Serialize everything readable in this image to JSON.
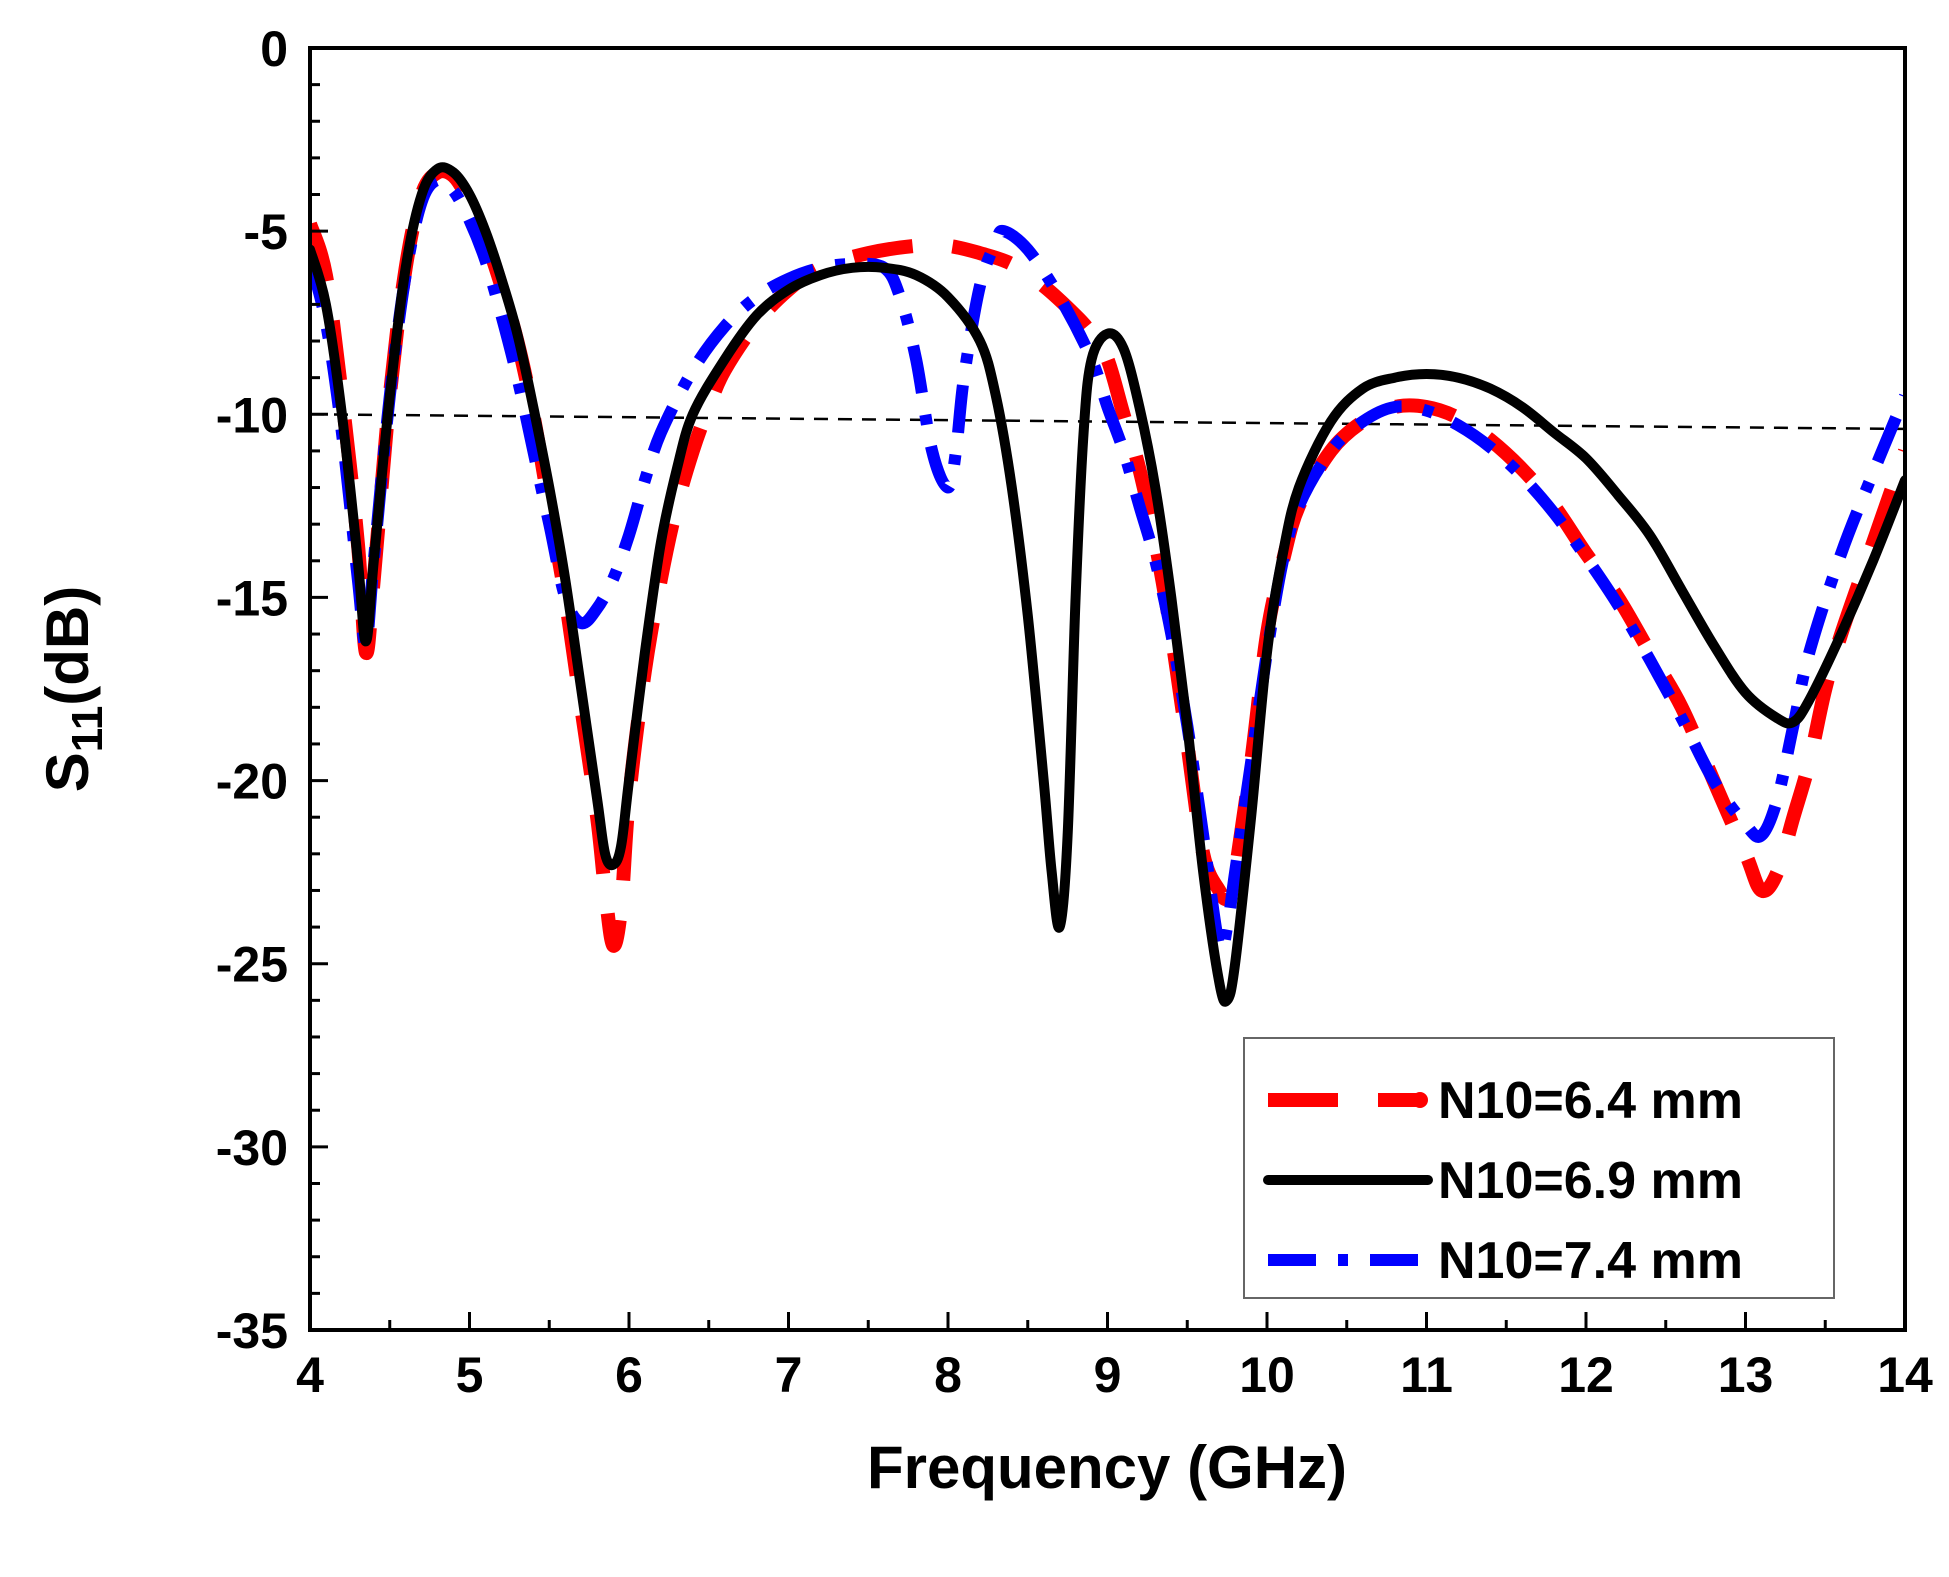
{
  "chart_data": {
    "type": "line",
    "title": "",
    "xlabel": "Frequency (GHz)",
    "ylabel_main": "S",
    "ylabel_sub": "11",
    "ylabel_unit": "(dB)",
    "xlim": [
      4,
      14
    ],
    "ylim": [
      -35,
      0
    ],
    "xticks": [
      4,
      5,
      6,
      7,
      8,
      9,
      10,
      11,
      12,
      13,
      14
    ],
    "yticks": [
      0,
      -5,
      -10,
      -15,
      -20,
      -25,
      -30,
      -35
    ],
    "grid": false,
    "legend_position": "bottom-right",
    "reference_line": {
      "style": "dashed",
      "color": "#000000",
      "points": [
        [
          4,
          -10.0
        ],
        [
          14,
          -10.4
        ]
      ]
    },
    "series": [
      {
        "name": "N10=6.4 mm",
        "color": "#ff0000",
        "style": "dash",
        "points": [
          [
            4.0,
            -4.8
          ],
          [
            4.1,
            -6.2
          ],
          [
            4.2,
            -9.5
          ],
          [
            4.3,
            -13.5
          ],
          [
            4.35,
            -16.5
          ],
          [
            4.4,
            -14.5
          ],
          [
            4.5,
            -9.5
          ],
          [
            4.6,
            -6.0
          ],
          [
            4.7,
            -4.0
          ],
          [
            4.8,
            -3.4
          ],
          [
            4.9,
            -3.5
          ],
          [
            5.0,
            -4.2
          ],
          [
            5.1,
            -5.2
          ],
          [
            5.2,
            -6.5
          ],
          [
            5.3,
            -8.0
          ],
          [
            5.4,
            -10.0
          ],
          [
            5.5,
            -12.5
          ],
          [
            5.6,
            -15.0
          ],
          [
            5.7,
            -18.0
          ],
          [
            5.8,
            -21.0
          ],
          [
            5.85,
            -23.0
          ],
          [
            5.9,
            -24.5
          ],
          [
            5.95,
            -23.5
          ],
          [
            6.0,
            -20.5
          ],
          [
            6.1,
            -17.0
          ],
          [
            6.2,
            -14.5
          ],
          [
            6.3,
            -12.5
          ],
          [
            6.4,
            -11.0
          ],
          [
            6.5,
            -9.8
          ],
          [
            6.6,
            -8.8
          ],
          [
            6.8,
            -7.5
          ],
          [
            7.0,
            -6.6
          ],
          [
            7.2,
            -6.0
          ],
          [
            7.5,
            -5.6
          ],
          [
            7.8,
            -5.4
          ],
          [
            8.0,
            -5.4
          ],
          [
            8.2,
            -5.6
          ],
          [
            8.4,
            -5.9
          ],
          [
            8.6,
            -6.5
          ],
          [
            8.8,
            -7.3
          ],
          [
            8.9,
            -7.8
          ],
          [
            9.0,
            -8.5
          ],
          [
            9.1,
            -10.0
          ],
          [
            9.2,
            -11.5
          ],
          [
            9.3,
            -13.5
          ],
          [
            9.4,
            -16.0
          ],
          [
            9.5,
            -19.0
          ],
          [
            9.6,
            -22.0
          ],
          [
            9.7,
            -23.0
          ],
          [
            9.75,
            -23.2
          ],
          [
            9.8,
            -22.5
          ],
          [
            9.9,
            -19.5
          ],
          [
            10.0,
            -16.0
          ],
          [
            10.1,
            -14.0
          ],
          [
            10.2,
            -12.5
          ],
          [
            10.4,
            -11.0
          ],
          [
            10.6,
            -10.2
          ],
          [
            10.8,
            -9.8
          ],
          [
            11.0,
            -9.8
          ],
          [
            11.2,
            -10.1
          ],
          [
            11.4,
            -10.7
          ],
          [
            11.6,
            -11.5
          ],
          [
            11.8,
            -12.5
          ],
          [
            12.0,
            -13.8
          ],
          [
            12.2,
            -15.0
          ],
          [
            12.4,
            -16.5
          ],
          [
            12.6,
            -18.0
          ],
          [
            12.8,
            -20.0
          ],
          [
            13.0,
            -22.0
          ],
          [
            13.1,
            -23.0
          ],
          [
            13.2,
            -22.5
          ],
          [
            13.3,
            -21.0
          ],
          [
            13.4,
            -19.5
          ],
          [
            13.5,
            -17.5
          ],
          [
            13.6,
            -16.0
          ],
          [
            13.8,
            -13.5
          ],
          [
            14.0,
            -11.0
          ]
        ]
      },
      {
        "name": "N10=6.9 mm",
        "color": "#000000",
        "style": "solid",
        "points": [
          [
            4.0,
            -5.5
          ],
          [
            4.1,
            -7.0
          ],
          [
            4.2,
            -10.0
          ],
          [
            4.3,
            -14.0
          ],
          [
            4.35,
            -16.2
          ],
          [
            4.4,
            -14.0
          ],
          [
            4.5,
            -9.5
          ],
          [
            4.6,
            -6.0
          ],
          [
            4.7,
            -4.0
          ],
          [
            4.8,
            -3.3
          ],
          [
            4.9,
            -3.4
          ],
          [
            5.0,
            -4.0
          ],
          [
            5.1,
            -5.0
          ],
          [
            5.2,
            -6.3
          ],
          [
            5.3,
            -7.8
          ],
          [
            5.4,
            -9.8
          ],
          [
            5.5,
            -12.0
          ],
          [
            5.6,
            -14.5
          ],
          [
            5.7,
            -17.5
          ],
          [
            5.8,
            -20.5
          ],
          [
            5.85,
            -22.0
          ],
          [
            5.9,
            -22.3
          ],
          [
            5.95,
            -21.8
          ],
          [
            6.0,
            -20.0
          ],
          [
            6.1,
            -16.5
          ],
          [
            6.2,
            -13.5
          ],
          [
            6.3,
            -11.5
          ],
          [
            6.4,
            -10.0
          ],
          [
            6.6,
            -8.5
          ],
          [
            6.8,
            -7.3
          ],
          [
            7.0,
            -6.6
          ],
          [
            7.2,
            -6.2
          ],
          [
            7.4,
            -6.0
          ],
          [
            7.6,
            -6.0
          ],
          [
            7.8,
            -6.2
          ],
          [
            8.0,
            -6.8
          ],
          [
            8.2,
            -8.0
          ],
          [
            8.3,
            -9.5
          ],
          [
            8.4,
            -12.0
          ],
          [
            8.5,
            -15.5
          ],
          [
            8.6,
            -20.0
          ],
          [
            8.65,
            -22.5
          ],
          [
            8.7,
            -24.0
          ],
          [
            8.75,
            -21.5
          ],
          [
            8.8,
            -15.0
          ],
          [
            8.85,
            -10.5
          ],
          [
            8.9,
            -8.5
          ],
          [
            9.0,
            -7.8
          ],
          [
            9.1,
            -8.2
          ],
          [
            9.2,
            -9.8
          ],
          [
            9.3,
            -12.0
          ],
          [
            9.4,
            -15.0
          ],
          [
            9.5,
            -18.5
          ],
          [
            9.6,
            -22.5
          ],
          [
            9.7,
            -25.5
          ],
          [
            9.75,
            -26.0
          ],
          [
            9.8,
            -25.0
          ],
          [
            9.9,
            -21.0
          ],
          [
            10.0,
            -16.5
          ],
          [
            10.1,
            -13.8
          ],
          [
            10.2,
            -12.0
          ],
          [
            10.4,
            -10.2
          ],
          [
            10.6,
            -9.3
          ],
          [
            10.8,
            -9.0
          ],
          [
            11.0,
            -8.9
          ],
          [
            11.2,
            -9.0
          ],
          [
            11.4,
            -9.3
          ],
          [
            11.6,
            -9.8
          ],
          [
            11.8,
            -10.5
          ],
          [
            12.0,
            -11.2
          ],
          [
            12.2,
            -12.2
          ],
          [
            12.4,
            -13.3
          ],
          [
            12.6,
            -14.8
          ],
          [
            12.8,
            -16.3
          ],
          [
            13.0,
            -17.6
          ],
          [
            13.2,
            -18.3
          ],
          [
            13.3,
            -18.4
          ],
          [
            13.4,
            -17.8
          ],
          [
            13.6,
            -16.0
          ],
          [
            13.8,
            -14.0
          ],
          [
            14.0,
            -11.8
          ]
        ]
      },
      {
        "name": "N10=7.4 mm",
        "color": "#0000ff",
        "style": "dashdot",
        "points": [
          [
            4.0,
            -5.8
          ],
          [
            4.1,
            -7.5
          ],
          [
            4.2,
            -10.5
          ],
          [
            4.3,
            -14.5
          ],
          [
            4.35,
            -16.3
          ],
          [
            4.4,
            -14.0
          ],
          [
            4.5,
            -9.5
          ],
          [
            4.6,
            -6.2
          ],
          [
            4.7,
            -4.2
          ],
          [
            4.8,
            -3.6
          ],
          [
            4.9,
            -3.9
          ],
          [
            5.0,
            -4.7
          ],
          [
            5.1,
            -5.8
          ],
          [
            5.2,
            -7.3
          ],
          [
            5.3,
            -9.0
          ],
          [
            5.4,
            -11.0
          ],
          [
            5.5,
            -13.0
          ],
          [
            5.6,
            -15.0
          ],
          [
            5.7,
            -15.7
          ],
          [
            5.8,
            -15.3
          ],
          [
            5.9,
            -14.5
          ],
          [
            6.0,
            -13.3
          ],
          [
            6.1,
            -11.8
          ],
          [
            6.2,
            -10.5
          ],
          [
            6.4,
            -8.8
          ],
          [
            6.6,
            -7.6
          ],
          [
            6.8,
            -6.8
          ],
          [
            7.0,
            -6.3
          ],
          [
            7.2,
            -6.0
          ],
          [
            7.4,
            -5.9
          ],
          [
            7.6,
            -6.0
          ],
          [
            7.7,
            -6.8
          ],
          [
            7.8,
            -8.5
          ],
          [
            7.9,
            -11.0
          ],
          [
            8.0,
            -12.0
          ],
          [
            8.05,
            -11.0
          ],
          [
            8.1,
            -9.0
          ],
          [
            8.2,
            -6.5
          ],
          [
            8.3,
            -5.3
          ],
          [
            8.35,
            -5.0
          ],
          [
            8.5,
            -5.5
          ],
          [
            8.7,
            -6.8
          ],
          [
            8.9,
            -8.5
          ],
          [
            9.0,
            -9.8
          ],
          [
            9.1,
            -11.0
          ],
          [
            9.2,
            -12.5
          ],
          [
            9.3,
            -14.0
          ],
          [
            9.4,
            -16.0
          ],
          [
            9.5,
            -18.5
          ],
          [
            9.6,
            -21.5
          ],
          [
            9.7,
            -24.5
          ],
          [
            9.75,
            -24.0
          ],
          [
            9.8,
            -22.5
          ],
          [
            9.9,
            -19.5
          ],
          [
            10.0,
            -16.5
          ],
          [
            10.1,
            -14.0
          ],
          [
            10.2,
            -12.5
          ],
          [
            10.4,
            -11.0
          ],
          [
            10.6,
            -10.2
          ],
          [
            10.8,
            -9.8
          ],
          [
            11.0,
            -9.9
          ],
          [
            11.2,
            -10.3
          ],
          [
            11.4,
            -10.9
          ],
          [
            11.6,
            -11.7
          ],
          [
            11.8,
            -12.7
          ],
          [
            12.0,
            -13.9
          ],
          [
            12.2,
            -15.2
          ],
          [
            12.4,
            -16.7
          ],
          [
            12.6,
            -18.3
          ],
          [
            12.8,
            -20.0
          ],
          [
            13.0,
            -21.2
          ],
          [
            13.1,
            -21.5
          ],
          [
            13.2,
            -20.5
          ],
          [
            13.3,
            -18.5
          ],
          [
            13.4,
            -16.5
          ],
          [
            13.6,
            -13.8
          ],
          [
            13.8,
            -11.6
          ],
          [
            14.0,
            -9.5
          ]
        ]
      }
    ]
  }
}
